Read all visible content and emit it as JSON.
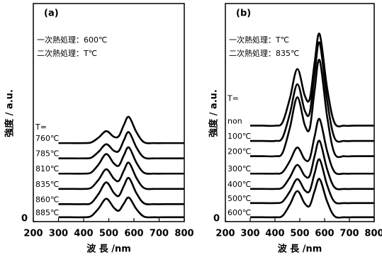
{
  "chart_data": [
    {
      "type": "line",
      "label": "(a)",
      "annotations": [
        "一次熱処理：600℃",
        "二次熱処理：T℃"
      ],
      "xlabel": "波 長 /nm",
      "ylabel": "強度 / a.u.",
      "legend_title": "T=",
      "color": "#000000",
      "xlim": [
        200,
        800
      ],
      "ylim": [
        0,
        100
      ],
      "xticks": [
        200,
        300,
        400,
        500,
        600,
        700,
        800
      ],
      "yticks": [
        0
      ],
      "x": [
        300,
        350,
        400,
        430,
        460,
        490,
        520,
        540,
        560,
        580,
        610,
        640,
        680,
        720,
        800
      ],
      "series": [
        {
          "name": "760℃",
          "values": [
            36,
            36,
            36,
            36.3,
            38.6,
            41.5,
            38.9,
            39.2,
            44.3,
            48,
            41,
            36.4,
            36,
            36,
            36
          ]
        },
        {
          "name": "785℃",
          "values": [
            29,
            29,
            29,
            29.3,
            32.1,
            35.5,
            32.5,
            32.4,
            37.3,
            41,
            34,
            29.4,
            29,
            29,
            29
          ]
        },
        {
          "name": "810℃",
          "values": [
            22,
            22,
            22,
            22.5,
            26.3,
            31,
            26.7,
            25.7,
            30.4,
            34,
            27,
            22.4,
            22,
            22,
            22
          ]
        },
        {
          "name": "835℃",
          "values": [
            15,
            15,
            15,
            15.5,
            19.3,
            24,
            19.7,
            18.7,
            23.4,
            27,
            20,
            15.4,
            15,
            15,
            15
          ]
        },
        {
          "name": "860℃",
          "values": [
            8,
            8,
            8,
            8.5,
            12.8,
            18,
            13.2,
            11.8,
            16.4,
            20,
            13,
            8.4,
            8,
            8,
            8
          ]
        },
        {
          "name": "885℃",
          "values": [
            2,
            2,
            2,
            2.5,
            6.1,
            10.5,
            6.4,
            5,
            8.3,
            11,
            5.7,
            2.3,
            2,
            2,
            2
          ]
        }
      ]
    },
    {
      "type": "line",
      "label": "(b)",
      "annotations": [
        "一次熱処理：T℃",
        "二次熱処理：835℃"
      ],
      "xlabel": "波 長 /nm",
      "ylabel": "強度 / a.u.",
      "legend_title": "T=",
      "color": "#000000",
      "xlim": [
        200,
        800
      ],
      "ylim": [
        0,
        100
      ],
      "xticks": [
        200,
        300,
        400,
        500,
        600,
        700,
        800
      ],
      "yticks": [
        0
      ],
      "x": [
        300,
        350,
        400,
        430,
        460,
        490,
        520,
        540,
        560,
        580,
        610,
        640,
        680,
        720,
        800
      ],
      "series": [
        {
          "name": "non",
          "values": [
            44,
            44,
            44,
            45.4,
            56.5,
            70,
            57.8,
            56.2,
            73.1,
            86,
            61.4,
            45.3,
            44,
            44,
            44
          ]
        },
        {
          "name": "100℃",
          "values": [
            37,
            37,
            37,
            38.4,
            49.5,
            63,
            50.9,
            49.9,
            68.1,
            82,
            55.7,
            38.4,
            37,
            37,
            37
          ]
        },
        {
          "name": "200℃",
          "values": [
            30,
            30,
            30,
            31.4,
            43,
            57,
            44.3,
            42.7,
            60.4,
            74,
            48.3,
            31.3,
            30,
            30,
            30
          ]
        },
        {
          "name": "300℃",
          "values": [
            22,
            22,
            22,
            22.6,
            27.8,
            34,
            28.5,
            28.9,
            39.2,
            47,
            32.4,
            22.8,
            22,
            22,
            22
          ]
        },
        {
          "name": "400℃",
          "values": [
            15,
            15,
            15,
            15.6,
            20.3,
            26,
            21,
            21,
            30.2,
            37,
            24.1,
            15.7,
            15,
            15,
            15
          ]
        },
        {
          "name": "500℃",
          "values": [
            8.5,
            8.5,
            8.5,
            9.1,
            13.8,
            19.5,
            14.4,
            14.1,
            22.3,
            28.5,
            16.8,
            9.1,
            8.5,
            8.5,
            8.5
          ]
        },
        {
          "name": "600℃",
          "values": [
            2,
            2,
            2,
            2.6,
            7.8,
            14,
            8.3,
            7.3,
            14.1,
            19.5,
            9.3,
            2.5,
            2,
            2,
            2
          ]
        }
      ]
    }
  ]
}
